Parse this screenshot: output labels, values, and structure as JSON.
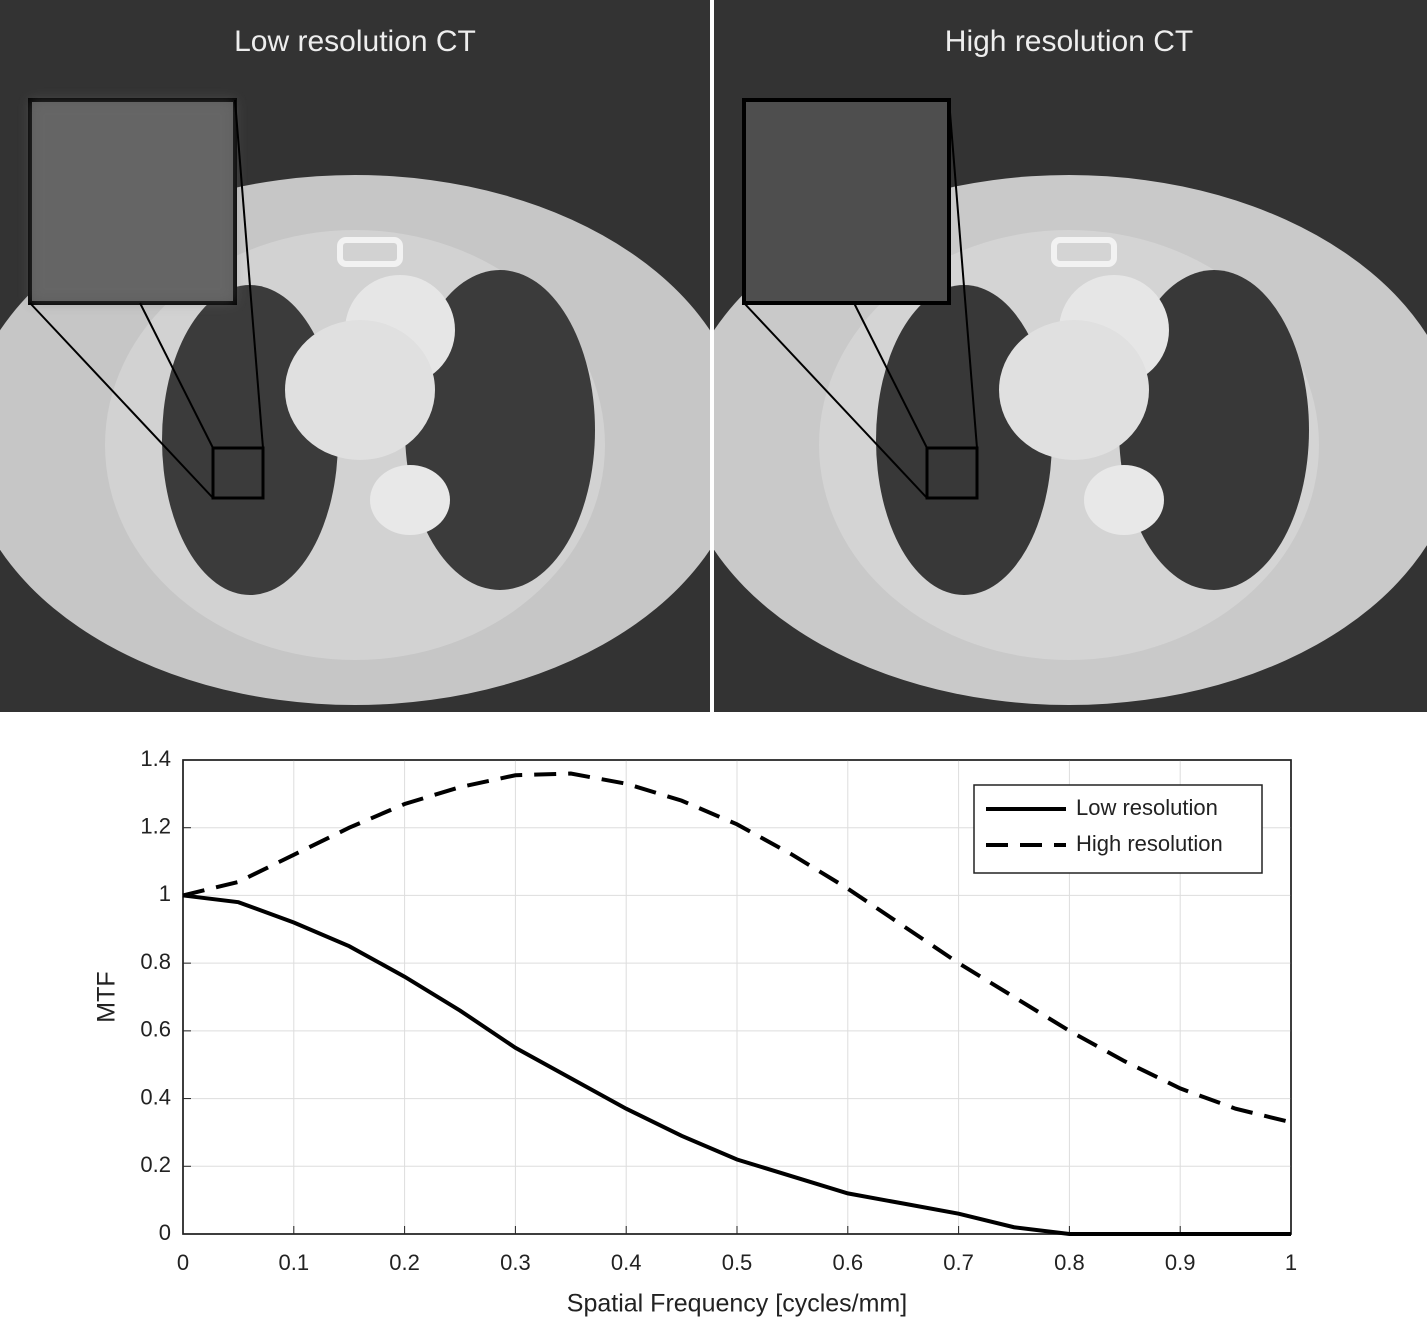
{
  "images": [
    {
      "title": "Low resolution CT"
    },
    {
      "title": "High resolution CT"
    }
  ],
  "chart_data": {
    "type": "line",
    "xlabel": "Spatial Frequency [cycles/mm]",
    "ylabel": "MTF",
    "x": [
      0,
      0.05,
      0.1,
      0.15,
      0.2,
      0.25,
      0.3,
      0.35,
      0.4,
      0.45,
      0.5,
      0.55,
      0.6,
      0.65,
      0.7,
      0.75,
      0.8,
      0.85,
      0.9,
      0.95,
      1
    ],
    "series": [
      {
        "name": "Low resolution",
        "color": "#000000",
        "style": "solid",
        "values": [
          1,
          0.98,
          0.92,
          0.85,
          0.76,
          0.66,
          0.55,
          0.46,
          0.37,
          0.29,
          0.22,
          0.17,
          0.12,
          0.09,
          0.06,
          0.02,
          0,
          0,
          0,
          0,
          0
        ]
      },
      {
        "name": "High resolution",
        "color": "#000000",
        "style": "dashed",
        "values": [
          1,
          1.04,
          1.12,
          1.2,
          1.27,
          1.32,
          1.355,
          1.36,
          1.33,
          1.28,
          1.21,
          1.12,
          1.02,
          0.91,
          0.8,
          0.7,
          0.6,
          0.51,
          0.43,
          0.37,
          0.33
        ]
      }
    ],
    "xlim": [
      0,
      1
    ],
    "xticks": [
      0,
      0.1,
      0.2,
      0.3,
      0.4,
      0.5,
      0.6,
      0.7,
      0.8,
      0.9,
      1
    ],
    "ylim": [
      0,
      1.4
    ],
    "yticks": [
      0,
      0.2,
      0.4,
      0.6,
      0.8,
      1,
      1.2,
      1.4
    ],
    "grid": true,
    "legend": "northeast"
  }
}
